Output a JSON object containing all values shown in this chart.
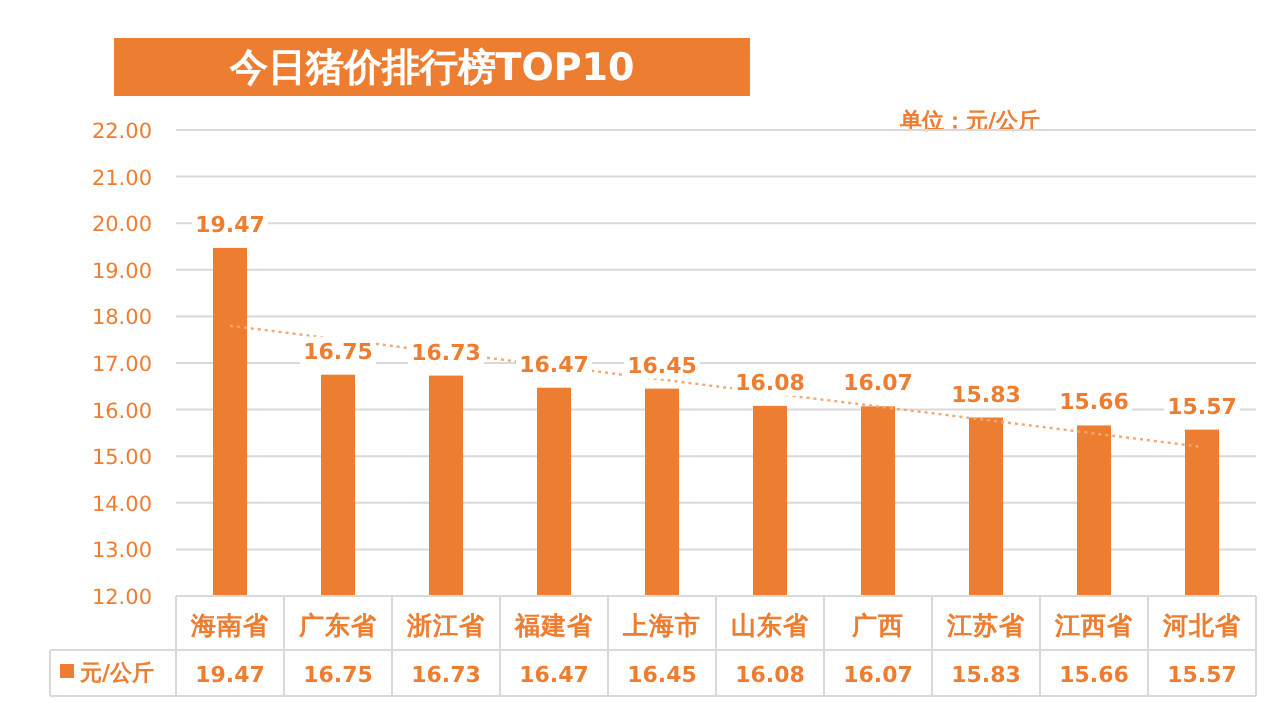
{
  "chart_data": {
    "type": "bar",
    "title": "今日猪价排行榜TOP10",
    "categories": [
      "海南省",
      "广东省",
      "浙江省",
      "福建省",
      "上海市",
      "山东省",
      "广西",
      "江苏省",
      "江西省",
      "河北省"
    ],
    "series": [
      {
        "name": "元/公斤",
        "color": "#ed7d31",
        "values": [
          19.47,
          16.75,
          16.73,
          16.47,
          16.45,
          16.08,
          16.07,
          15.83,
          15.66,
          15.57
        ],
        "value_labels": [
          "19.47",
          "16.75",
          "16.73",
          "16.47",
          "16.45",
          "16.08",
          "16.07",
          "15.83",
          "15.66",
          "15.57"
        ]
      },
      {
        "type": "line",
        "color": "#f4a673",
        "line_style": "dotted",
        "x": [
          "海南省",
          "河北省"
        ],
        "values": [
          17.8,
          15.2
        ]
      }
    ],
    "ylim": [
      12,
      22
    ],
    "yticks": [
      {
        "value": 12,
        "label": "12.00"
      },
      {
        "value": 13,
        "label": "13.00"
      },
      {
        "value": 14,
        "label": "14.00"
      },
      {
        "value": 15,
        "label": "15.00"
      },
      {
        "value": 16,
        "label": "16.00"
      },
      {
        "value": 17,
        "label": "17.00"
      },
      {
        "value": 18,
        "label": "18.00"
      },
      {
        "value": 19,
        "label": "19.00"
      },
      {
        "value": 20,
        "label": "20.00"
      },
      {
        "value": 21,
        "label": "21.00"
      },
      {
        "value": 22,
        "label": "22.00"
      }
    ],
    "grid": "y",
    "legend": "bottom",
    "annotations": [
      "单位：元/公斤"
    ]
  }
}
